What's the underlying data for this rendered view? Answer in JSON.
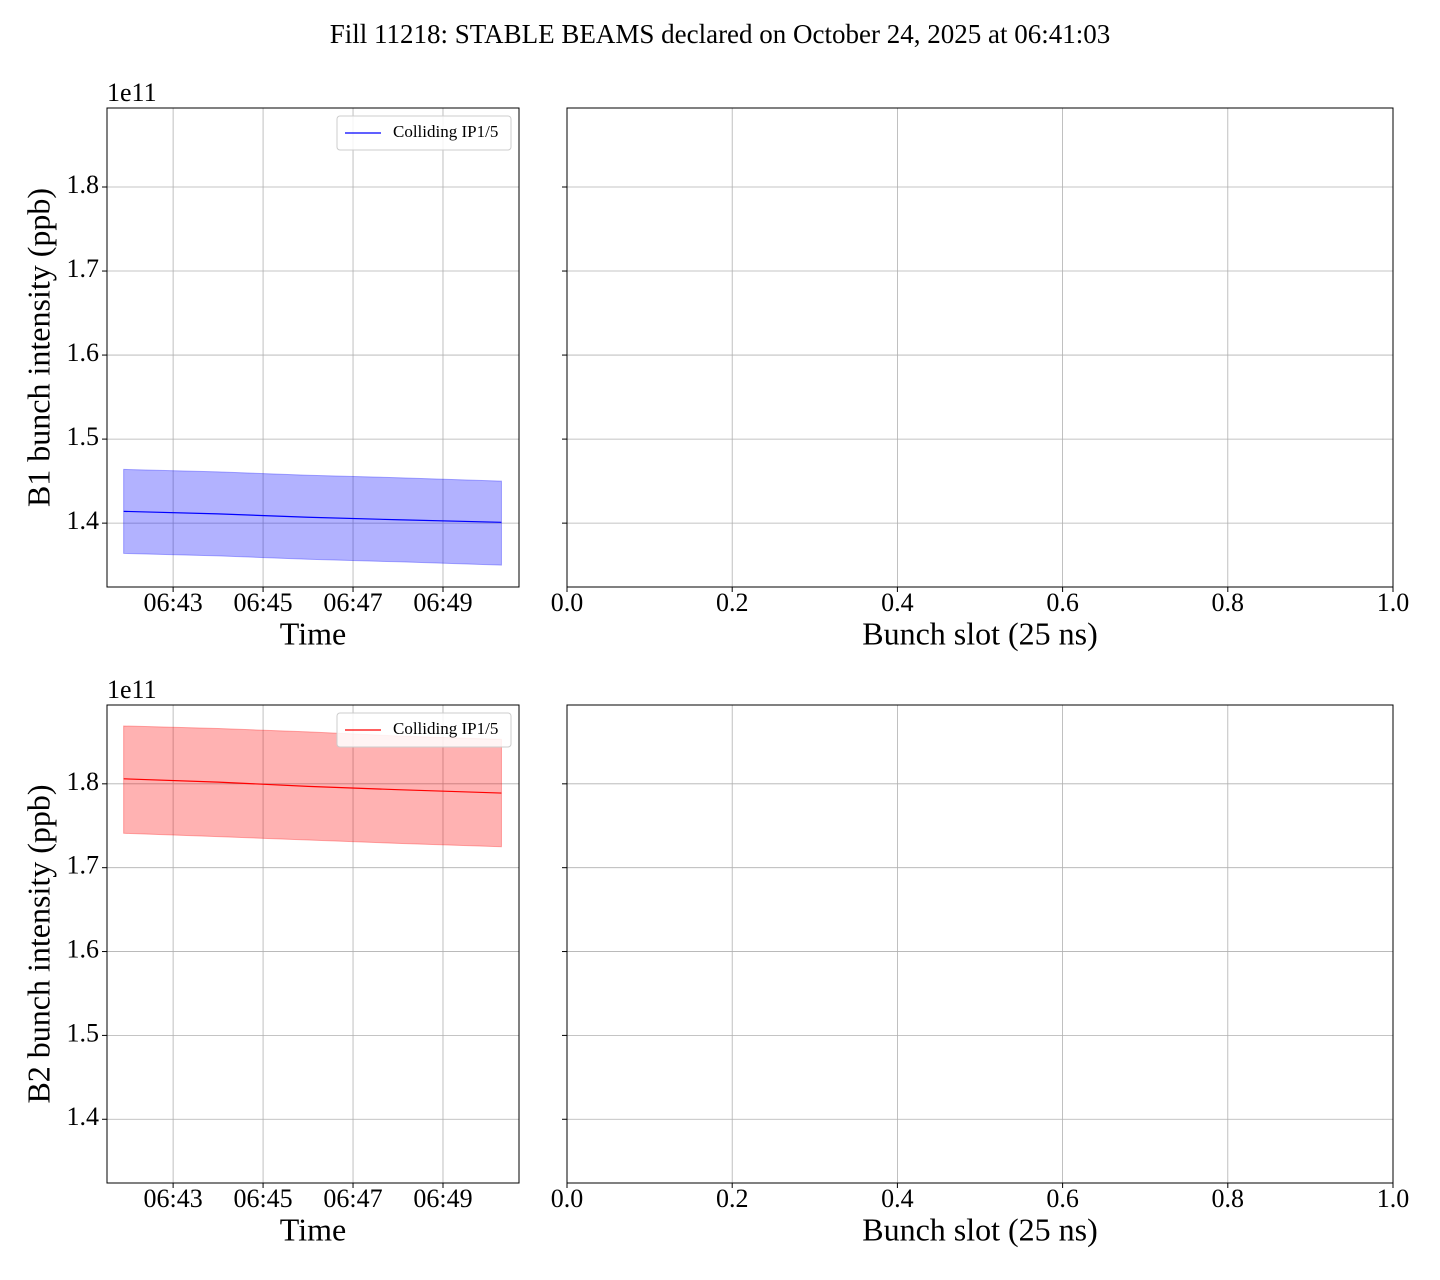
{
  "title": "Fill 11218: STABLE BEAMS declared on October 24, 2025 at 06:41:03",
  "chart_data": [
    {
      "type": "line",
      "xlabel": "Time",
      "ylabel": "B1 bunch intensity (ppb)",
      "y_offset_label": "1e11",
      "x": [
        401.9,
        404,
        406,
        408,
        410.3
      ],
      "series": [
        {
          "name": "Colliding IP1/5",
          "color": "#0000ff",
          "values": [
            1.414,
            1.411,
            1.407,
            1.404,
            1.401
          ],
          "lower": [
            1.364,
            1.361,
            1.357,
            1.354,
            1.35
          ],
          "upper": [
            1.464,
            1.461,
            1.457,
            1.454,
            1.45
          ]
        }
      ],
      "xlim": [
        401.53,
        410.69
      ],
      "xticks": [
        {
          "value": 403,
          "label": "06:43"
        },
        {
          "value": 405,
          "label": "06:45"
        },
        {
          "value": 407,
          "label": "06:47"
        },
        {
          "value": 409,
          "label": "06:49"
        }
      ],
      "ylim": [
        1.324,
        1.894
      ],
      "yticks": [
        1.4,
        1.5,
        1.6,
        1.7,
        1.8
      ],
      "grid": true,
      "legend": "upper right"
    },
    {
      "type": "line",
      "xlabel": "Bunch slot (25 ns)",
      "xlim": [
        0,
        1
      ],
      "xticks": [
        {
          "value": 0,
          "label": "0.0"
        },
        0.2,
        0.4,
        0.6,
        0.8,
        {
          "value": 1,
          "label": "1.0"
        }
      ],
      "ylim": [
        1.324,
        1.894
      ],
      "yticks": [
        1.4,
        1.5,
        1.6,
        1.7,
        1.8
      ],
      "grid": true
    },
    {
      "type": "line",
      "xlabel": "Time",
      "ylabel": "B2 bunch intensity (ppb)",
      "y_offset_label": "1e11",
      "x": [
        401.9,
        404,
        406,
        408,
        410.3
      ],
      "series": [
        {
          "name": "Colliding IP1/5",
          "color": "#ff0000",
          "values": [
            1.806,
            1.802,
            1.797,
            1.793,
            1.789
          ],
          "lower": [
            1.741,
            1.737,
            1.733,
            1.729,
            1.725
          ],
          "upper": [
            1.869,
            1.866,
            1.862,
            1.857,
            1.853
          ]
        }
      ],
      "xlim": [
        401.53,
        410.69
      ],
      "xticks": [
        {
          "value": 403,
          "label": "06:43"
        },
        {
          "value": 405,
          "label": "06:45"
        },
        {
          "value": 407,
          "label": "06:47"
        },
        {
          "value": 409,
          "label": "06:49"
        }
      ],
      "ylim": [
        1.324,
        1.894
      ],
      "yticks": [
        1.4,
        1.5,
        1.6,
        1.7,
        1.8
      ],
      "grid": true,
      "legend": "upper right"
    },
    {
      "type": "line",
      "xlabel": "Bunch slot (25 ns)",
      "xlim": [
        0,
        1
      ],
      "xticks": [
        {
          "value": 0,
          "label": "0.0"
        },
        0.2,
        0.4,
        0.6,
        0.8,
        {
          "value": 1,
          "label": "1.0"
        }
      ],
      "ylim": [
        1.324,
        1.894
      ],
      "yticks": [
        1.4,
        1.5,
        1.6,
        1.7,
        1.8
      ],
      "grid": true
    }
  ]
}
